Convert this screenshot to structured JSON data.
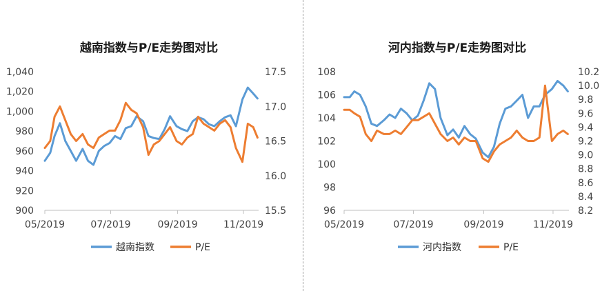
{
  "chart_data": [
    {
      "type": "line",
      "title": "越南指数与P/E走势图对比",
      "x_ticks": [
        "05/2019",
        "07/2019",
        "09/2019",
        "11/2019"
      ],
      "x_tick_dates": [
        "2019-05-01",
        "2019-07-01",
        "2019-09-01",
        "2019-11-01"
      ],
      "xlim": [
        "2019-05-01",
        "2019-11-15"
      ],
      "y_left": {
        "ticks": [
          "900",
          "920",
          "940",
          "960",
          "980",
          "1,000",
          "1,020",
          "1,040"
        ],
        "lim": [
          900,
          1040
        ]
      },
      "y_right": {
        "ticks": [
          "15.5",
          "16.0",
          "16.5",
          "17.0",
          "17.5"
        ],
        "lim": [
          15.5,
          17.5
        ]
      },
      "legend": "bottom",
      "series": [
        {
          "name": "越南指数",
          "axis": "left",
          "color": "#5B9BD5",
          "x": [
            "2019-05-01",
            "2019-05-06",
            "2019-05-10",
            "2019-05-15",
            "2019-05-20",
            "2019-05-25",
            "2019-05-30",
            "2019-06-05",
            "2019-06-10",
            "2019-06-15",
            "2019-06-20",
            "2019-06-25",
            "2019-06-30",
            "2019-07-05",
            "2019-07-10",
            "2019-07-15",
            "2019-07-20",
            "2019-07-25",
            "2019-07-31",
            "2019-08-05",
            "2019-08-10",
            "2019-08-15",
            "2019-08-20",
            "2019-08-25",
            "2019-08-31",
            "2019-09-05",
            "2019-09-10",
            "2019-09-15",
            "2019-09-20",
            "2019-09-25",
            "2019-09-30",
            "2019-10-05",
            "2019-10-10",
            "2019-10-15",
            "2019-10-20",
            "2019-10-25",
            "2019-10-31",
            "2019-11-05",
            "2019-11-10",
            "2019-11-14"
          ],
          "values": [
            950,
            958,
            975,
            988,
            970,
            960,
            950,
            962,
            950,
            946,
            960,
            965,
            968,
            975,
            972,
            983,
            985,
            995,
            990,
            975,
            973,
            972,
            982,
            995,
            985,
            982,
            980,
            990,
            994,
            992,
            987,
            985,
            990,
            994,
            996,
            985,
            1012,
            1024,
            1018,
            1013
          ]
        },
        {
          "name": "P/E",
          "axis": "right",
          "color": "#ED7D31",
          "x": [
            "2019-05-01",
            "2019-05-06",
            "2019-05-10",
            "2019-05-15",
            "2019-05-20",
            "2019-05-25",
            "2019-05-30",
            "2019-06-05",
            "2019-06-10",
            "2019-06-15",
            "2019-06-20",
            "2019-06-25",
            "2019-06-30",
            "2019-07-05",
            "2019-07-10",
            "2019-07-15",
            "2019-07-20",
            "2019-07-25",
            "2019-07-31",
            "2019-08-05",
            "2019-08-10",
            "2019-08-15",
            "2019-08-20",
            "2019-08-25",
            "2019-08-31",
            "2019-09-05",
            "2019-09-10",
            "2019-09-15",
            "2019-09-20",
            "2019-09-25",
            "2019-09-30",
            "2019-10-05",
            "2019-10-10",
            "2019-10-15",
            "2019-10-20",
            "2019-10-25",
            "2019-10-31",
            "2019-11-05",
            "2019-11-10",
            "2019-11-14"
          ],
          "values": [
            16.4,
            16.5,
            16.85,
            17.0,
            16.8,
            16.6,
            16.5,
            16.6,
            16.45,
            16.4,
            16.55,
            16.6,
            16.65,
            16.65,
            16.8,
            17.05,
            16.95,
            16.9,
            16.7,
            16.3,
            16.45,
            16.5,
            16.6,
            16.7,
            16.5,
            16.45,
            16.55,
            16.6,
            16.85,
            16.75,
            16.7,
            16.65,
            16.75,
            16.8,
            16.7,
            16.4,
            16.2,
            16.75,
            16.7,
            16.55
          ]
        }
      ]
    },
    {
      "type": "line",
      "title": "河内指数与P/E走势图对比",
      "x_ticks": [
        "05/2019",
        "07/2019",
        "09/2019",
        "11/2019"
      ],
      "x_tick_dates": [
        "2019-05-01",
        "2019-07-01",
        "2019-09-01",
        "2019-11-01"
      ],
      "xlim": [
        "2019-05-01",
        "2019-11-15"
      ],
      "y_left": {
        "ticks": [
          "96",
          "98",
          "100",
          "102",
          "104",
          "106",
          "108"
        ],
        "lim": [
          96,
          108
        ]
      },
      "y_right": {
        "ticks": [
          "8.2",
          "8.4",
          "8.6",
          "8.8",
          "9.0",
          "9.2",
          "9.4",
          "9.6",
          "9.8",
          "10.0",
          "10.2"
        ],
        "lim": [
          8.2,
          10.2
        ]
      },
      "legend": "bottom",
      "series": [
        {
          "name": "河内指数",
          "axis": "left",
          "color": "#5B9BD5",
          "x": [
            "2019-05-01",
            "2019-05-06",
            "2019-05-10",
            "2019-05-15",
            "2019-05-20",
            "2019-05-25",
            "2019-05-30",
            "2019-06-05",
            "2019-06-10",
            "2019-06-15",
            "2019-06-20",
            "2019-06-25",
            "2019-06-30",
            "2019-07-05",
            "2019-07-10",
            "2019-07-15",
            "2019-07-20",
            "2019-07-25",
            "2019-07-31",
            "2019-08-05",
            "2019-08-10",
            "2019-08-15",
            "2019-08-20",
            "2019-08-25",
            "2019-08-31",
            "2019-09-05",
            "2019-09-10",
            "2019-09-15",
            "2019-09-20",
            "2019-09-25",
            "2019-09-30",
            "2019-10-05",
            "2019-10-10",
            "2019-10-15",
            "2019-10-20",
            "2019-10-25",
            "2019-10-31",
            "2019-11-05",
            "2019-11-10",
            "2019-11-14"
          ],
          "values": [
            105.8,
            105.8,
            106.3,
            106.0,
            105.0,
            103.5,
            103.3,
            103.8,
            104.3,
            104.0,
            104.8,
            104.4,
            103.8,
            104.2,
            105.5,
            107.0,
            106.5,
            104.0,
            102.5,
            103.0,
            102.3,
            103.3,
            102.6,
            102.2,
            101.0,
            100.6,
            101.5,
            103.5,
            104.8,
            105.0,
            105.5,
            106.0,
            104.0,
            105.0,
            105.0,
            106.0,
            106.5,
            107.2,
            106.8,
            106.3
          ]
        },
        {
          "name": "P/E",
          "axis": "right",
          "color": "#ED7D31",
          "x": [
            "2019-05-01",
            "2019-05-06",
            "2019-05-10",
            "2019-05-15",
            "2019-05-20",
            "2019-05-25",
            "2019-05-30",
            "2019-06-05",
            "2019-06-10",
            "2019-06-15",
            "2019-06-20",
            "2019-06-25",
            "2019-06-30",
            "2019-07-05",
            "2019-07-10",
            "2019-07-15",
            "2019-07-20",
            "2019-07-25",
            "2019-07-31",
            "2019-08-05",
            "2019-08-10",
            "2019-08-15",
            "2019-08-20",
            "2019-08-25",
            "2019-08-31",
            "2019-09-05",
            "2019-09-10",
            "2019-09-15",
            "2019-09-20",
            "2019-09-25",
            "2019-09-30",
            "2019-10-05",
            "2019-10-10",
            "2019-10-15",
            "2019-10-20",
            "2019-10-25",
            "2019-10-31",
            "2019-11-05",
            "2019-11-10",
            "2019-11-14"
          ],
          "values": [
            9.65,
            9.65,
            9.6,
            9.55,
            9.3,
            9.2,
            9.35,
            9.3,
            9.3,
            9.35,
            9.3,
            9.4,
            9.5,
            9.5,
            9.55,
            9.6,
            9.45,
            9.3,
            9.2,
            9.25,
            9.15,
            9.25,
            9.2,
            9.2,
            8.95,
            8.9,
            9.05,
            9.15,
            9.2,
            9.25,
            9.35,
            9.25,
            9.2,
            9.2,
            9.25,
            10.0,
            9.2,
            9.3,
            9.35,
            9.3
          ]
        }
      ]
    }
  ]
}
